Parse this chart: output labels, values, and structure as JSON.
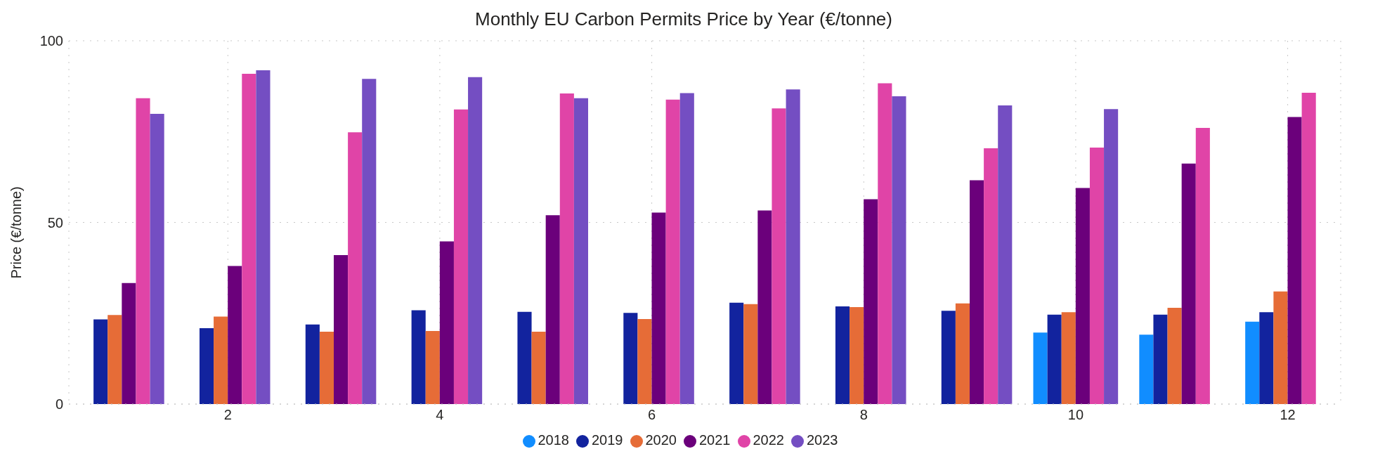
{
  "chart_data": {
    "type": "bar",
    "title": "Monthly EU Carbon Permits Price by Year (€/tonne)",
    "ylabel": "Price (€/tonne)",
    "x": [
      1,
      2,
      3,
      4,
      5,
      6,
      7,
      8,
      9,
      10,
      11,
      12
    ],
    "xlim": [
      0.5,
      12.5
    ],
    "xticks": [
      2,
      4,
      6,
      8,
      10,
      12
    ],
    "ylim": [
      0,
      100
    ],
    "yticks": [
      0,
      50,
      100
    ],
    "grid": true,
    "legend": "bottom",
    "marker": "circle",
    "series": [
      {
        "name": "2018",
        "color": "#118dff",
        "values": [
          null,
          null,
          null,
          null,
          null,
          null,
          null,
          null,
          null,
          19.7,
          19.1,
          22.7
        ]
      },
      {
        "name": "2019",
        "color": "#12239e",
        "values": [
          23.3,
          20.9,
          21.9,
          25.8,
          25.4,
          25.1,
          27.9,
          26.9,
          25.7,
          24.6,
          24.6,
          25.3
        ]
      },
      {
        "name": "2020",
        "color": "#e66c37",
        "values": [
          24.5,
          24.1,
          19.9,
          20.1,
          19.9,
          23.4,
          27.5,
          26.7,
          27.7,
          25.3,
          26.5,
          31.0
        ]
      },
      {
        "name": "2021",
        "color": "#6b007b",
        "values": [
          33.3,
          38.0,
          41.0,
          44.8,
          52.0,
          52.7,
          53.3,
          56.4,
          61.6,
          59.5,
          66.2,
          79.0
        ]
      },
      {
        "name": "2022",
        "color": "#e044a7",
        "values": [
          84.2,
          90.9,
          74.8,
          81.1,
          85.5,
          83.8,
          81.4,
          88.3,
          70.4,
          70.6,
          76.0,
          85.7
        ]
      },
      {
        "name": "2023",
        "color": "#744ec2",
        "values": [
          79.9,
          91.9,
          89.5,
          90.0,
          84.2,
          85.6,
          86.6,
          84.7,
          82.2,
          81.2,
          null,
          null
        ]
      }
    ]
  }
}
